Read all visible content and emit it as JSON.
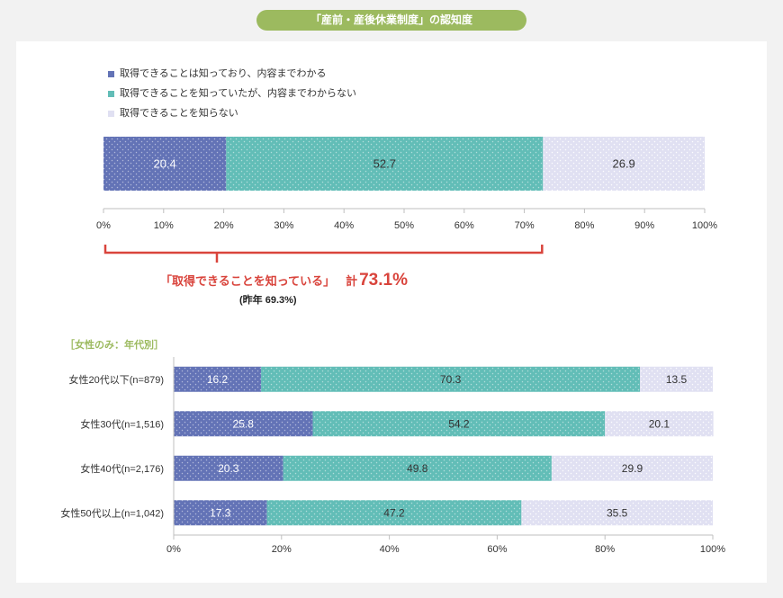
{
  "title": "「産前・産後休業制度」の認知度",
  "colors": {
    "accent": "#d9443c",
    "title_bg": "#9cba5f",
    "section_label": "#9cba5f"
  },
  "summary": {
    "label": "「取得できることを知っている」",
    "total_prefix": "計",
    "total_value": "73.1%",
    "last_year": "(昨年 69.3%)"
  },
  "section_label": "［女性のみ：年代別］",
  "chart_data": [
    {
      "type": "bar",
      "orientation": "horizontal",
      "stacked": true,
      "series": [
        {
          "name": "取得できることは知っており、内容までわかる",
          "color": "#6373b6",
          "values": [
            20.4
          ]
        },
        {
          "name": "取得できることを知っていたが、内容までわからない",
          "color": "#62bdb7",
          "values": [
            52.7
          ]
        },
        {
          "name": "取得できることを知らない",
          "color": "#e0e0f2",
          "values": [
            26.9
          ]
        }
      ],
      "xlim": [
        0,
        100
      ],
      "xticks": [
        "0%",
        "10%",
        "20%",
        "30%",
        "40%",
        "50%",
        "60%",
        "70%",
        "80%",
        "90%",
        "100%"
      ],
      "legend_position": "top-left",
      "grid": false
    },
    {
      "type": "bar",
      "orientation": "horizontal",
      "stacked": true,
      "categories": [
        "女性20代以下(n=879)",
        "女性30代(n=1,516)",
        "女性40代(n=2,176)",
        "女性50代以上(n=1,042)"
      ],
      "series": [
        {
          "color": "#6373b6",
          "values": [
            16.2,
            25.8,
            20.3,
            17.3
          ]
        },
        {
          "color": "#62bdb7",
          "values": [
            70.3,
            54.2,
            49.8,
            47.2
          ]
        },
        {
          "color": "#e0e0f2",
          "values": [
            13.5,
            20.1,
            29.9,
            35.5
          ]
        }
      ],
      "xlim": [
        0,
        100
      ],
      "xticks": [
        "0%",
        "20%",
        "40%",
        "60%",
        "80%",
        "100%"
      ],
      "grid": false
    }
  ]
}
